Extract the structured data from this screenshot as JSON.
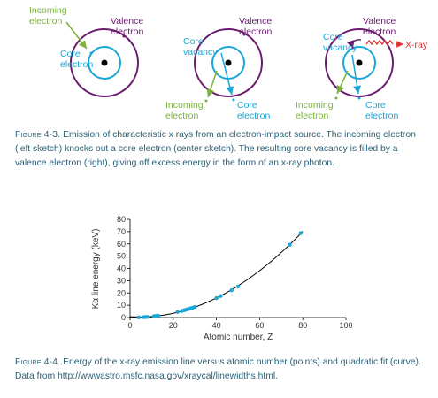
{
  "figure3": {
    "panels": [
      {
        "labels": {
          "incoming": "Incoming\nelectron",
          "valence": "Valence\nelectron",
          "core": "Core\nelectron"
        }
      },
      {
        "labels": {
          "valence": "Valence\nelectron",
          "vacancy": "Core\nvacancy",
          "incoming": "Incoming\nelectron",
          "core": "Core\nelectron"
        }
      },
      {
        "labels": {
          "valence": "Valence\nelectron",
          "vacancy": "Core\nvacancy",
          "xray": "X-ray",
          "incoming": "Incoming\nelectron",
          "core": "Core\nelectron"
        }
      }
    ],
    "caption": {
      "label": "Figure 4-3.",
      "text": " Emission of characteristic x rays from an electron-impact source. The incoming electron (left sketch) knocks out a core electron (center sketch). The resulting core vacancy is filled by a valence electron (right), giving off excess energy in the form of an x-ray photon."
    },
    "colors": {
      "green": "#7ab33c",
      "purple": "#6a1b6e",
      "cyan": "#1aa6d6",
      "red": "#e03030",
      "black": "#000000"
    }
  },
  "figure4": {
    "caption": {
      "label": "Figure 4-4.",
      "text": " Energy of the x-ray emission line versus atomic number (points) and quadratic fit (curve). Data from http://wwwastro.msfc.nasa.gov/xraycal/linewidths.html."
    }
  },
  "chart_data": {
    "type": "scatter",
    "xlabel": "Atomic number, Z",
    "ylabel": "Kα line energy (keV)",
    "xlim": [
      0,
      100
    ],
    "ylim": [
      0,
      80
    ],
    "xticks": [
      0,
      20,
      40,
      60,
      80,
      100
    ],
    "yticks": [
      0,
      10,
      20,
      30,
      40,
      50,
      60,
      70,
      80
    ],
    "grid": false,
    "point_color": "#1aa6d6",
    "curve_color": "#000000",
    "points": {
      "x": [
        4,
        6,
        7,
        8,
        11,
        12,
        13,
        22,
        24,
        25,
        26,
        27,
        28,
        29,
        30,
        40,
        42,
        47,
        50,
        74,
        79
      ],
      "y": [
        0.1,
        0.3,
        0.4,
        0.5,
        1.0,
        1.3,
        1.5,
        4.5,
        5.4,
        5.9,
        6.4,
        6.9,
        7.5,
        8.0,
        8.6,
        15.8,
        17.5,
        22.2,
        25.3,
        59.3,
        68.8
      ]
    },
    "fit": {
      "type": "quadratic",
      "x_range": [
        0,
        80
      ]
    }
  }
}
